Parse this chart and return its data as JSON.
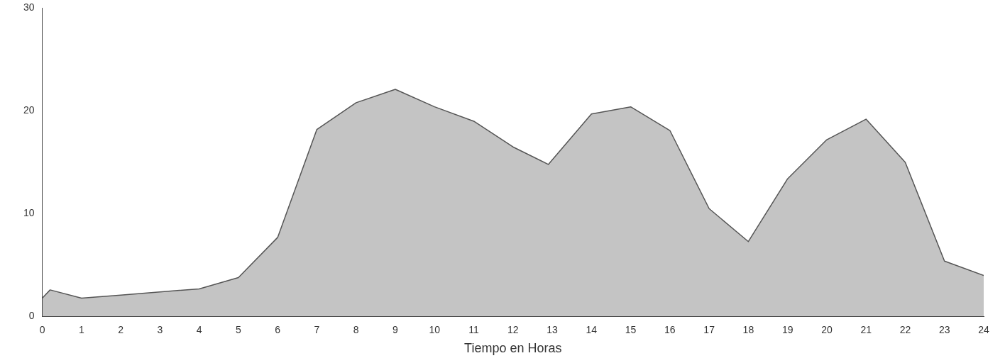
{
  "chart_data": {
    "type": "area",
    "xlabel": "Tiempo en Horas",
    "x": [
      0,
      0.2,
      1,
      2,
      3,
      4,
      5,
      6,
      7,
      8,
      9,
      10,
      11,
      12,
      12.9,
      14,
      15,
      16,
      17,
      18,
      19,
      20,
      21,
      22,
      23,
      24
    ],
    "series": [
      {
        "color": "#555555",
        "values": [
          1.8,
          2.6,
          1.8,
          2.1,
          2.4,
          2.7,
          3.8,
          7.7,
          18.2,
          20.8,
          22.1,
          20.4,
          19.0,
          16.5,
          14.8,
          19.7,
          20.4,
          18.1,
          10.5,
          7.3,
          13.4,
          17.2,
          19.2,
          15.0,
          5.4,
          4.0
        ]
      }
    ],
    "xlim": [
      0,
      24
    ],
    "xticks": [
      0,
      1,
      2,
      3,
      4,
      5,
      6,
      7,
      8,
      9,
      10,
      11,
      12,
      13,
      14,
      15,
      16,
      17,
      18,
      19,
      20,
      21,
      22,
      23,
      24
    ],
    "ylim": [
      0,
      30
    ],
    "yticks": [
      0,
      10,
      20,
      30
    ],
    "grid": false,
    "legend": false
  }
}
